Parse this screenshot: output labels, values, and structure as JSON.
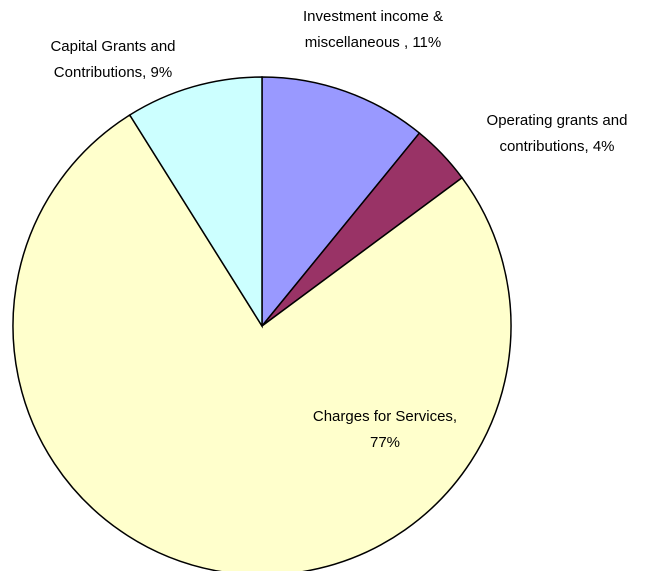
{
  "chart_data": {
    "type": "pie",
    "values": [
      11,
      4,
      77,
      9
    ],
    "value_labels": [
      [
        "Investment income &",
        "miscellaneous , 11%"
      ],
      [
        "Operating grants and",
        "contributions, 4%"
      ],
      [
        "Charges for Services,",
        "77%"
      ],
      [
        "Capital Grants and",
        "Contributions, 9%"
      ]
    ],
    "colors": [
      "#9999ff",
      "#993366",
      "#ffffcc",
      "#ccffff"
    ]
  }
}
